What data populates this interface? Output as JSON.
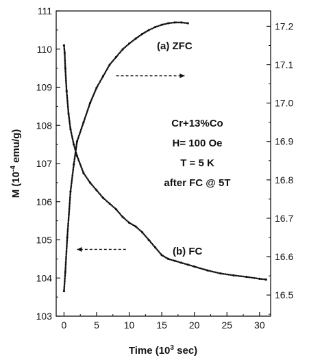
{
  "chart_data": {
    "type": "scatter",
    "title": "",
    "xlabel": "Time (10",
    "xlabel_sup": "3",
    "xlabel_tail": " sec)",
    "ylabel": "M (10",
    "ylabel_sup": "-4",
    "ylabel_tail": " emu/g)",
    "xlim": [
      -1.2,
      31.7
    ],
    "ylim": [
      103,
      111
    ],
    "y2lim": [
      16.445,
      17.24
    ],
    "x_ticks": [
      0,
      5,
      10,
      15,
      20,
      25,
      30
    ],
    "y_ticks": [
      103,
      104,
      105,
      106,
      107,
      108,
      109,
      110,
      111
    ],
    "y2_ticks": [
      16.5,
      16.6,
      16.7,
      16.8,
      16.9,
      17.0,
      17.1,
      17.2
    ],
    "y2_tick_labels": [
      "16.5",
      "16.6",
      "16.7",
      "16.8",
      "16.9",
      "17.0",
      "17.1",
      "17.2"
    ],
    "grid": false,
    "series": [
      {
        "name": "(b) FC",
        "axis": "left",
        "marker": "dot",
        "x": [
          0,
          0.1,
          0.2,
          0.4,
          0.7,
          1.0,
          1.5,
          2.0,
          3.0,
          4.0,
          5.0,
          6.0,
          7.0,
          8.0,
          9.0,
          10.0,
          11.0,
          12.0,
          13.0,
          14.0,
          15.0,
          16.0,
          17.0,
          18.0,
          19.0,
          20.0,
          22.0,
          24.0,
          26.0,
          28.0,
          30.0,
          31.0
        ],
        "y": [
          110.1,
          109.9,
          109.5,
          108.9,
          108.3,
          107.9,
          107.5,
          107.2,
          106.75,
          106.5,
          106.3,
          106.1,
          105.95,
          105.8,
          105.6,
          105.45,
          105.35,
          105.2,
          105.0,
          104.8,
          104.6,
          104.5,
          104.45,
          104.4,
          104.35,
          104.3,
          104.2,
          104.12,
          104.07,
          104.03,
          103.98,
          103.96
        ]
      },
      {
        "name": "(a) ZFC",
        "axis": "right",
        "marker": "dot",
        "x": [
          0,
          0.2,
          0.5,
          1.0,
          1.5,
          2.0,
          3.0,
          4.0,
          5.0,
          6.0,
          7.0,
          8.0,
          9.0,
          10.0,
          11.0,
          12.0,
          13.0,
          14.0,
          15.0,
          16.0,
          17.0,
          18.0,
          19.0
        ],
        "y": [
          16.51,
          16.56,
          16.65,
          16.77,
          16.84,
          16.9,
          16.95,
          17.0,
          17.04,
          17.07,
          17.1,
          17.12,
          17.14,
          17.155,
          17.168,
          17.18,
          17.19,
          17.198,
          17.204,
          17.208,
          17.21,
          17.21,
          17.208
        ]
      }
    ],
    "annotations": {
      "zfc_label": "(a) ZFC",
      "fc_label": "(b) FC",
      "conditions": [
        "Cr+13%Co",
        "H= 100 Oe",
        "T = 5 K",
        "after FC @ 5T"
      ]
    },
    "arrows": [
      {
        "target": "right",
        "x_from": 8.0,
        "x_to": 18.5,
        "y": 109.3
      },
      {
        "target": "left",
        "x_from": 9.5,
        "x_to": 2.0,
        "y": 104.75
      }
    ]
  }
}
